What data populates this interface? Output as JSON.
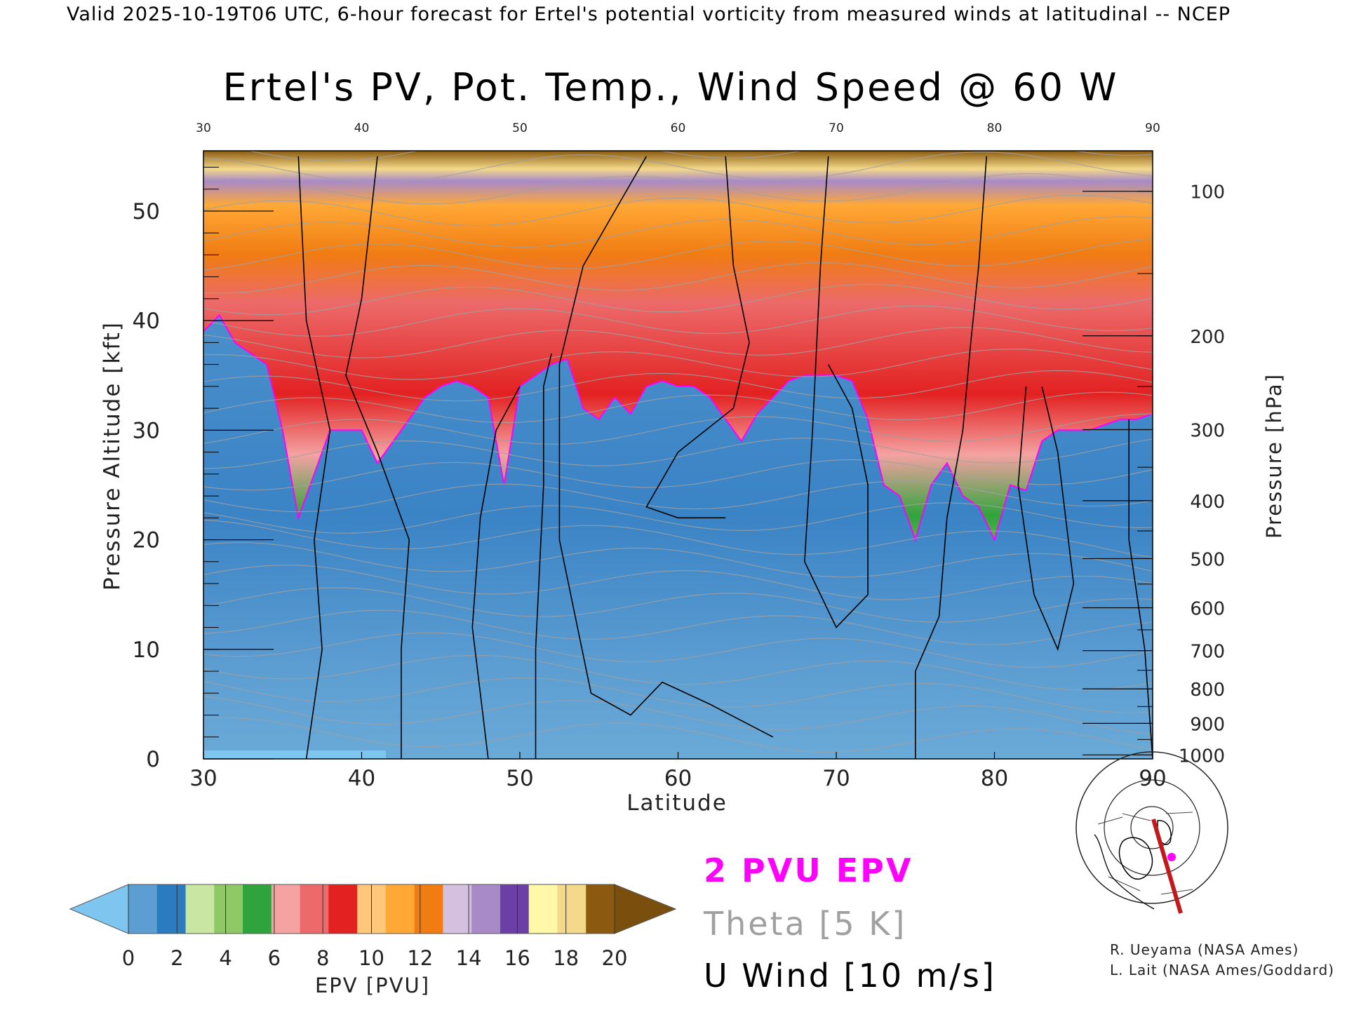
{
  "header": {
    "top_line": "Valid 2025-10-19T06 UTC, 6-hour forecast for Ertel's potential vorticity from measured winds at latitudinal -- NCEP"
  },
  "chart_data": {
    "type": "heatmap",
    "title": "Ertel's PV, Pot. Temp., Wind Speed @ 60 W",
    "xlabel": "Latitude",
    "ylabel_left": "Pressure Altitude [kft]",
    "ylabel_right": "Pressure [hPa]",
    "xlim": [
      30,
      90
    ],
    "ylim": [
      0,
      55.5
    ],
    "x_ticks": [
      "30",
      "40",
      "50",
      "60",
      "70",
      "80",
      "90"
    ],
    "y_ticks_left": [
      "0",
      "10",
      "20",
      "30",
      "40",
      "50"
    ],
    "y_ticks_right": [
      {
        "label": "100",
        "p": 100
      },
      {
        "label": "200",
        "p": 200
      },
      {
        "label": "300",
        "p": 300
      },
      {
        "label": "400",
        "p": 400
      },
      {
        "label": "500",
        "p": 500
      },
      {
        "label": "600",
        "p": 600
      },
      {
        "label": "700",
        "p": 700
      },
      {
        "label": "800",
        "p": 800
      },
      {
        "label": "900",
        "p": 900
      },
      {
        "label": "1000",
        "p": 1000
      }
    ],
    "pv_2pvu_altitude_kft": {
      "lat": [
        30,
        31,
        32,
        33,
        34,
        35,
        36,
        37,
        38,
        39,
        40,
        41,
        42,
        43,
        44,
        45,
        46,
        47,
        48,
        49,
        50,
        51,
        52,
        53,
        54,
        55,
        56,
        57,
        58,
        59,
        60,
        61,
        62,
        63,
        64,
        65,
        66,
        67,
        68,
        69,
        70,
        71,
        72,
        73,
        74,
        75,
        76,
        77,
        78,
        79,
        80,
        81,
        82,
        83,
        84,
        85,
        86,
        87,
        88,
        89,
        90
      ],
      "alt": [
        39,
        40.5,
        38,
        37,
        36,
        30,
        22,
        26,
        30,
        30,
        30,
        27,
        29,
        31,
        33,
        34,
        34.5,
        34,
        33,
        25,
        34,
        35,
        36,
        36.5,
        32,
        31,
        33,
        31.5,
        34,
        34.5,
        34,
        34,
        33,
        31,
        29,
        31.5,
        33,
        34.5,
        35,
        35,
        35,
        34.5,
        31,
        25,
        24,
        20,
        25,
        27,
        24,
        23,
        20,
        25,
        24.5,
        29,
        30,
        30,
        30,
        30.5,
        31,
        31,
        31.5
      ]
    },
    "colorbar": {
      "label": "EPV [PVU]",
      "min": 0,
      "max": 20,
      "tick_labels": [
        "0",
        "2",
        "4",
        "6",
        "8",
        "10",
        "12",
        "14",
        "16",
        "18",
        "20"
      ],
      "colors": [
        "#5d9ed2",
        "#2a7bbf",
        "#c9e7a2",
        "#8fc966",
        "#2fa43c",
        "#f4a2a2",
        "#ec6a6a",
        "#e32121",
        "#ffc77a",
        "#ffa836",
        "#f07c12",
        "#d6c0e0",
        "#a88ac9",
        "#6b3fa6",
        "#fff8a8",
        "#f4d98a",
        "#8b5a10"
      ],
      "under_color": "#7ec6ef",
      "over_color": "#7a4e0c"
    },
    "legend": {
      "items": [
        {
          "label": "2 PVU EPV",
          "color": "#ff00ff"
        },
        {
          "label": "Theta [5 K]",
          "color": "#a0a0a0"
        },
        {
          "label": "U Wind [10 m/s]",
          "color": "#000000"
        }
      ]
    }
  },
  "credits": [
    "R. Ueyama (NASA Ames)",
    "L. Lait (NASA Ames/Goddard)"
  ]
}
